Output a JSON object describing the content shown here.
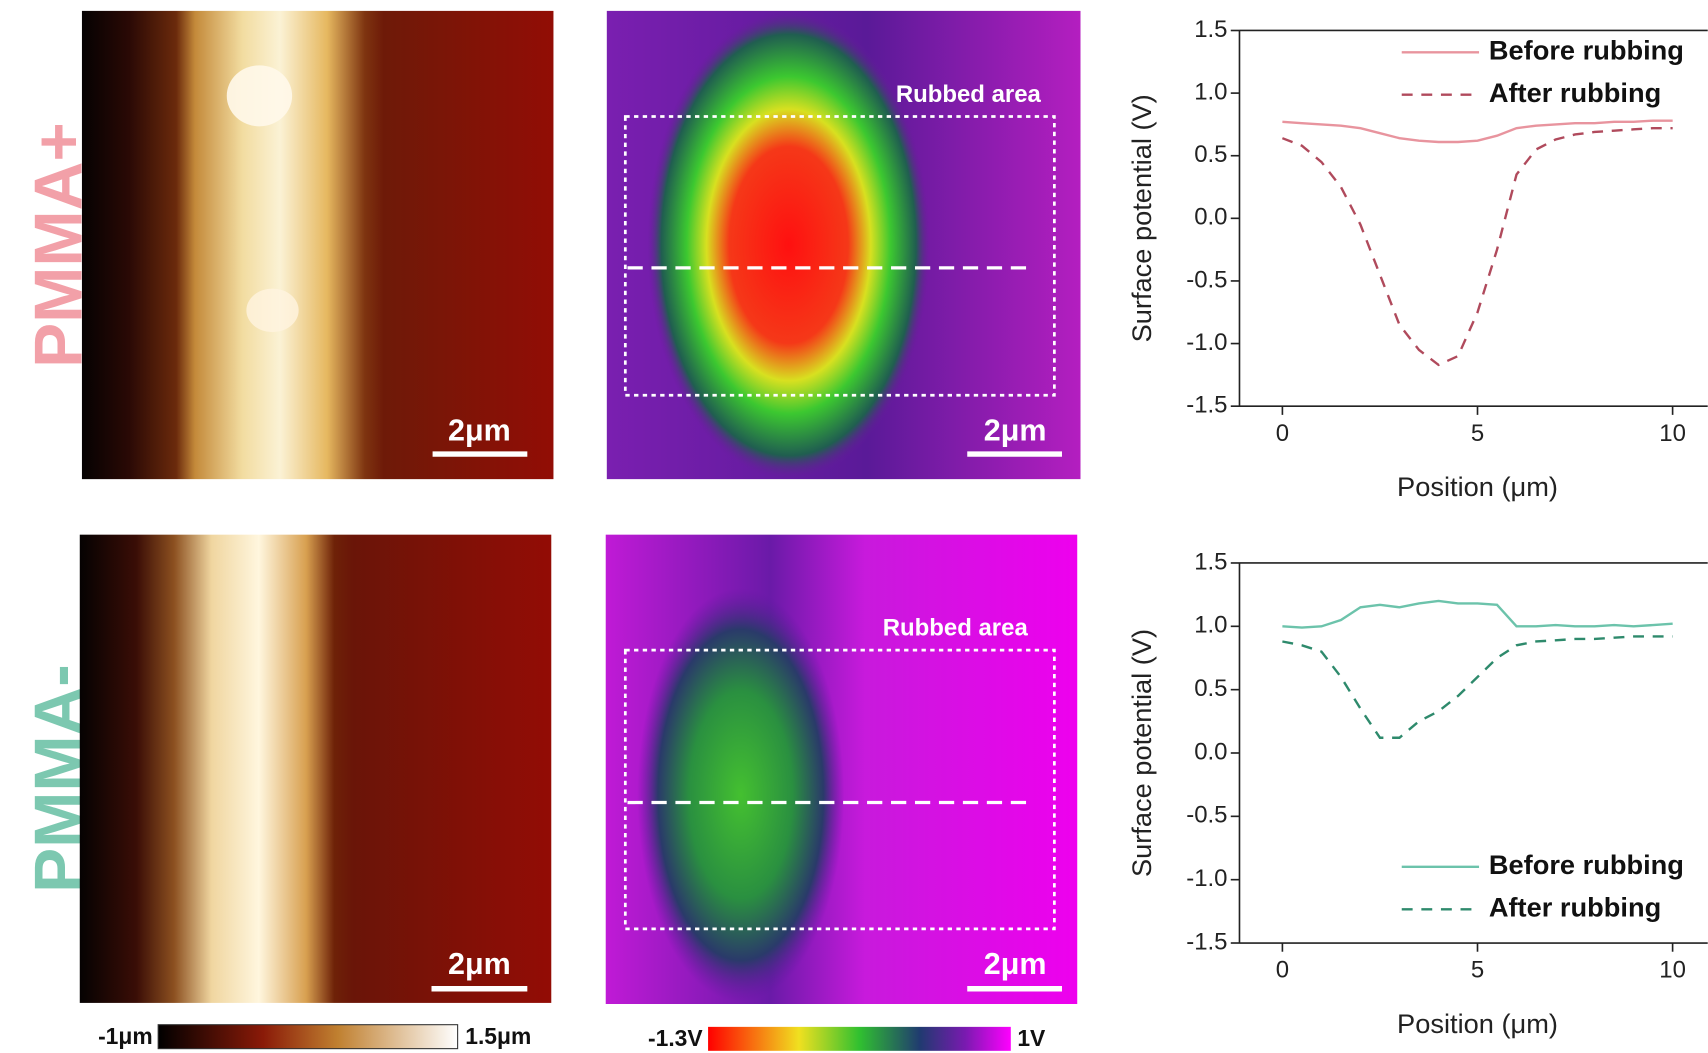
{
  "row_labels": [
    "PMMA+",
    "PMMA-"
  ],
  "panels": [
    {
      "scale_bar": "2μm"
    },
    {
      "scale_bar": "2μm",
      "annotation": "Rubbed area"
    },
    {
      "scale_bar": "2μm"
    },
    {
      "scale_bar": "2μm",
      "annotation": "Rubbed area"
    }
  ],
  "colorbars": [
    {
      "min_label": "-1μm",
      "max_label": "1.5μm"
    },
    {
      "min_label": "-1.3V",
      "max_label": "1V"
    }
  ],
  "chart_data": [
    {
      "type": "line",
      "xlabel": "Position (μm)",
      "ylabel": "Surface potential (V)",
      "x": [
        0,
        0.5,
        1,
        1.5,
        2,
        2.5,
        3,
        3.5,
        4,
        4.5,
        5,
        5.5,
        6,
        6.5,
        7,
        7.5,
        8,
        8.5,
        9,
        9.5,
        10
      ],
      "series": [
        {
          "name": "Before rubbing",
          "color": "#e8949e",
          "linestyle": "solid",
          "values": [
            0.77,
            0.76,
            0.75,
            0.74,
            0.72,
            0.68,
            0.64,
            0.62,
            0.61,
            0.61,
            0.62,
            0.66,
            0.72,
            0.74,
            0.75,
            0.76,
            0.76,
            0.77,
            0.77,
            0.78,
            0.78
          ]
        },
        {
          "name": "After rubbing",
          "color": "#b04a5c",
          "linestyle": "dashed",
          "values": [
            0.64,
            0.58,
            0.45,
            0.25,
            -0.05,
            -0.45,
            -0.85,
            -1.05,
            -1.17,
            -1.1,
            -0.75,
            -0.25,
            0.35,
            0.55,
            0.63,
            0.67,
            0.69,
            0.7,
            0.71,
            0.72,
            0.72
          ]
        }
      ],
      "xlim": [
        -1.1,
        10.9
      ],
      "ylim": [
        -1.5,
        1.5
      ],
      "xticks": [
        0,
        5,
        10
      ],
      "yticks": [
        1.5,
        {
          "value": 1,
          "label": "1.0"
        },
        0.5,
        {
          "value": 0,
          "label": "0.0"
        },
        -0.5,
        {
          "value": -1,
          "label": "-1.0"
        },
        -1.5
      ],
      "legend": "upper right"
    },
    {
      "type": "line",
      "xlabel": "Position (μm)",
      "ylabel": "Surface potential (V)",
      "x": [
        0,
        0.5,
        1,
        1.5,
        2,
        2.5,
        3,
        3.5,
        4,
        4.5,
        5,
        5.5,
        6,
        6.5,
        7,
        7.5,
        8,
        8.5,
        9,
        9.5,
        10
      ],
      "series": [
        {
          "name": "Before rubbing",
          "color": "#6cc3ab",
          "linestyle": "solid",
          "values": [
            1.0,
            0.99,
            1.0,
            1.05,
            1.15,
            1.17,
            1.15,
            1.18,
            1.2,
            1.18,
            1.18,
            1.17,
            1.0,
            1.0,
            1.01,
            1.0,
            1.0,
            1.01,
            1.0,
            1.01,
            1.02
          ]
        },
        {
          "name": "After rubbing",
          "color": "#2e8a6c",
          "linestyle": "dashed",
          "values": [
            0.88,
            0.85,
            0.8,
            0.6,
            0.35,
            0.12,
            0.12,
            0.25,
            0.33,
            0.45,
            0.6,
            0.75,
            0.85,
            0.88,
            0.89,
            0.9,
            0.9,
            0.91,
            0.92,
            0.92,
            0.92
          ]
        }
      ],
      "xlim": [
        -1.1,
        10.9
      ],
      "ylim": [
        -1.5,
        1.5
      ],
      "xticks": [
        0,
        5,
        10
      ],
      "yticks": [
        1.5,
        {
          "value": 1,
          "label": "1.0"
        },
        0.5,
        {
          "value": 0,
          "label": "0.0"
        },
        -0.5,
        {
          "value": -1,
          "label": "-1.0"
        },
        -1.5
      ],
      "legend": "lower right"
    }
  ]
}
